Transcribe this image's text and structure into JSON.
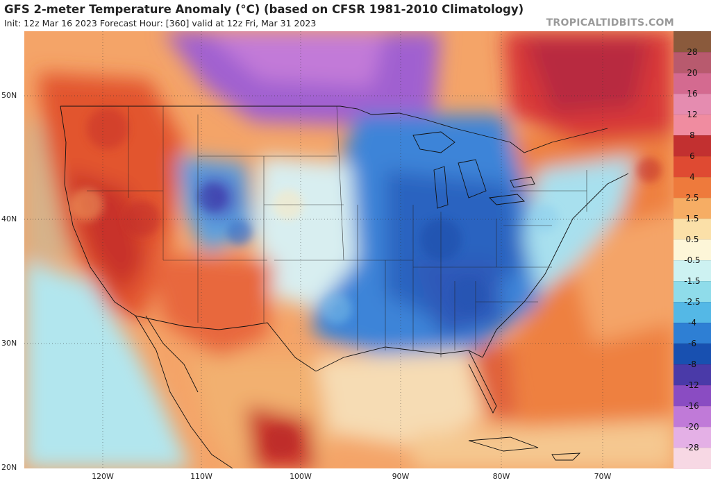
{
  "header": {
    "title": "GFS 2-meter Temperature Anomaly (°C) (based on CFSR 1981-2010 Climatology)",
    "subtitle": "Init: 12z Mar 16 2023   Forecast Hour: [360]   valid at 12z Fri, Mar 31 2023",
    "brand": "TROPICALTIDBITS.COM"
  },
  "axes": {
    "latitudes": [
      "50N",
      "40N",
      "30N",
      "20N"
    ],
    "longitudes": [
      "120W",
      "110W",
      "100W",
      "90W",
      "80W",
      "70W"
    ]
  },
  "colorbar": {
    "labels": [
      "28",
      "20",
      "16",
      "12",
      "8",
      "6",
      "4",
      "2.5",
      "1.5",
      "0.5",
      "-0.5",
      "-1.5",
      "-2.5",
      "-4",
      "-6",
      "-8",
      "-12",
      "-16",
      "-20",
      "-28"
    ],
    "colors": [
      "#8a5a3c",
      "#b85a6e",
      "#d46a90",
      "#e58cb0",
      "#f08ca0",
      "#c23030",
      "#df4a32",
      "#ee7a3c",
      "#f6ad64",
      "#fbe0a8",
      "#fdf6d8",
      "#cdf2f2",
      "#8fdcea",
      "#54b8e6",
      "#2e7fd4",
      "#1850b0",
      "#4a3aa8",
      "#8a4cc2",
      "#c07ad8",
      "#e4b0e6",
      "#f7d8e4"
    ]
  },
  "map": {
    "region": "Contiguous United States, southern Canada, northern Mexico and the Caribbean",
    "variable": "2-meter temperature anomaly",
    "units": "°C"
  }
}
